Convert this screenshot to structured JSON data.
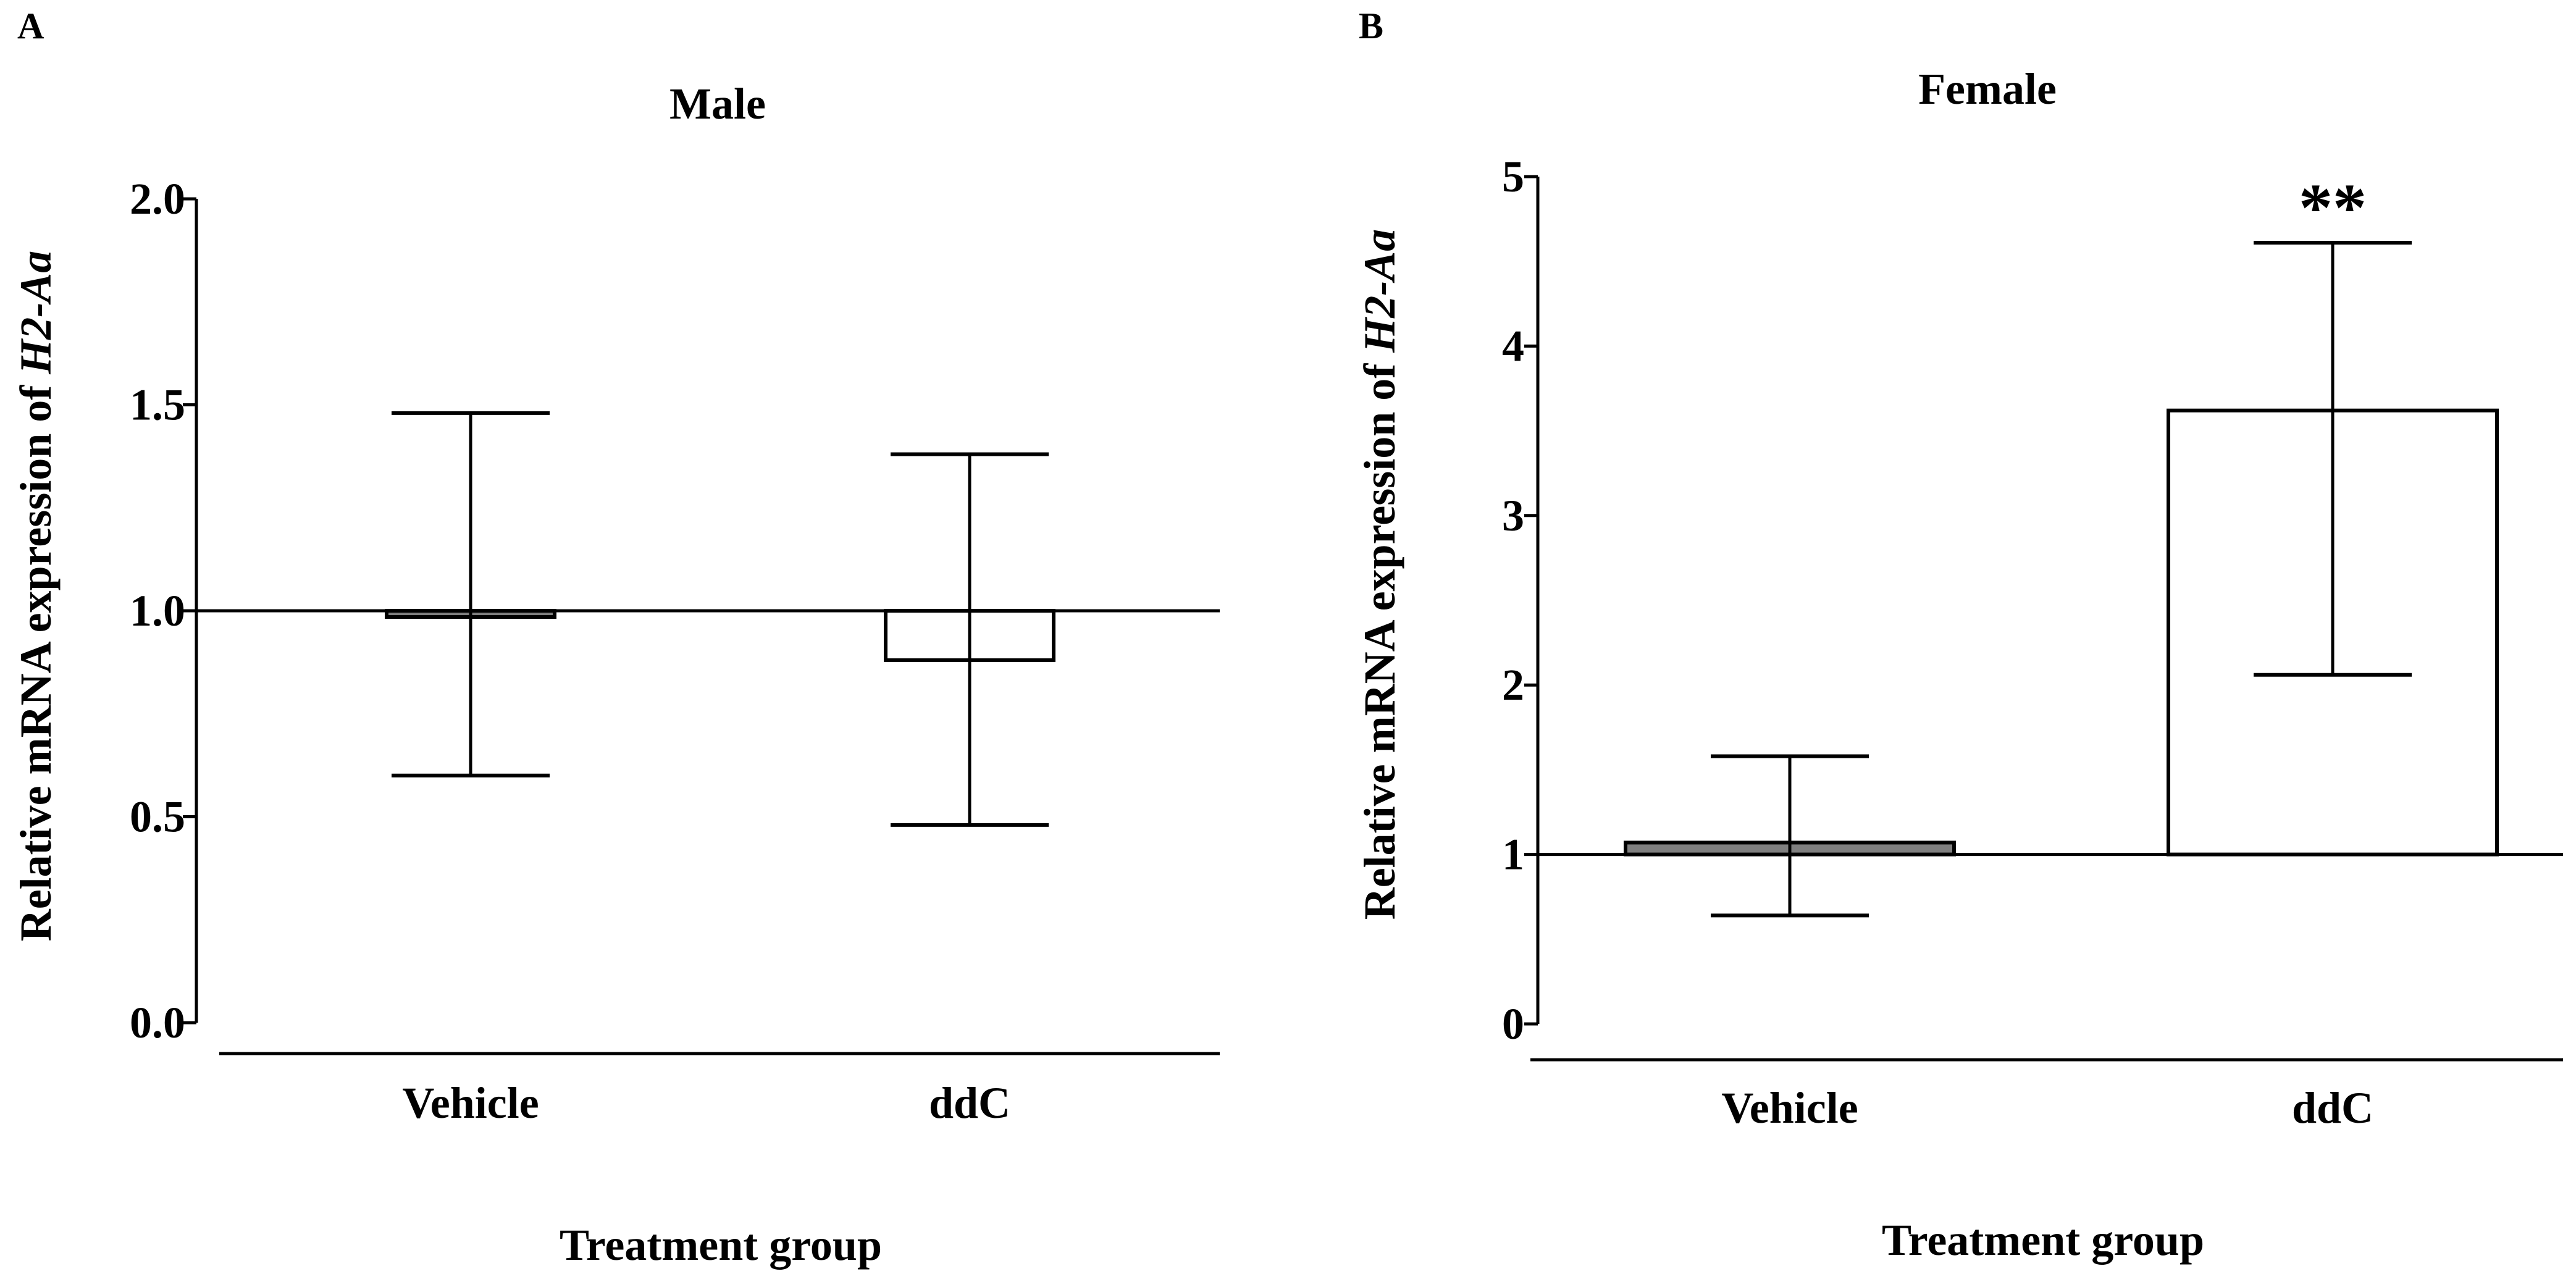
{
  "chart_data": [
    {
      "panel_label": "A",
      "type": "bar",
      "title": "Male",
      "xlabel": "Treatment group",
      "ylabel_prefix": "Relative mRNA expression of ",
      "ylabel_gene": "H2-Aa",
      "categories": [
        "Vehicle",
        "ddC"
      ],
      "values": [
        1.0,
        0.88
      ],
      "error_upper": [
        1.48,
        1.38
      ],
      "error_lower": [
        0.6,
        0.48
      ],
      "baseline": 1.0,
      "ylim": [
        0,
        2
      ],
      "yticks": [
        0,
        0.5,
        1,
        1.5,
        2
      ],
      "yticklabels": [
        "0.0",
        "0.5",
        "1.0",
        "1.5",
        "2.0"
      ],
      "bar_fills": [
        "#7f7f7f",
        "#ffffff"
      ],
      "annotations": [
        "",
        ""
      ]
    },
    {
      "panel_label": "B",
      "type": "bar",
      "title": "Female",
      "xlabel": "Treatment group",
      "ylabel_prefix": "Relative mRNA expression of ",
      "ylabel_gene": "H2-Aa",
      "categories": [
        "Vehicle",
        "ddC"
      ],
      "values": [
        1.07,
        3.62
      ],
      "error_upper": [
        1.58,
        4.61
      ],
      "error_lower": [
        0.64,
        2.06
      ],
      "baseline": 1.0,
      "ylim": [
        0,
        5
      ],
      "yticks": [
        0,
        1,
        2,
        3,
        4,
        5
      ],
      "yticklabels": [
        "0",
        "1",
        "2",
        "3",
        "4",
        "5"
      ],
      "bar_fills": [
        "#7f7f7f",
        "#ffffff"
      ],
      "annotations": [
        "",
        "**"
      ]
    }
  ]
}
